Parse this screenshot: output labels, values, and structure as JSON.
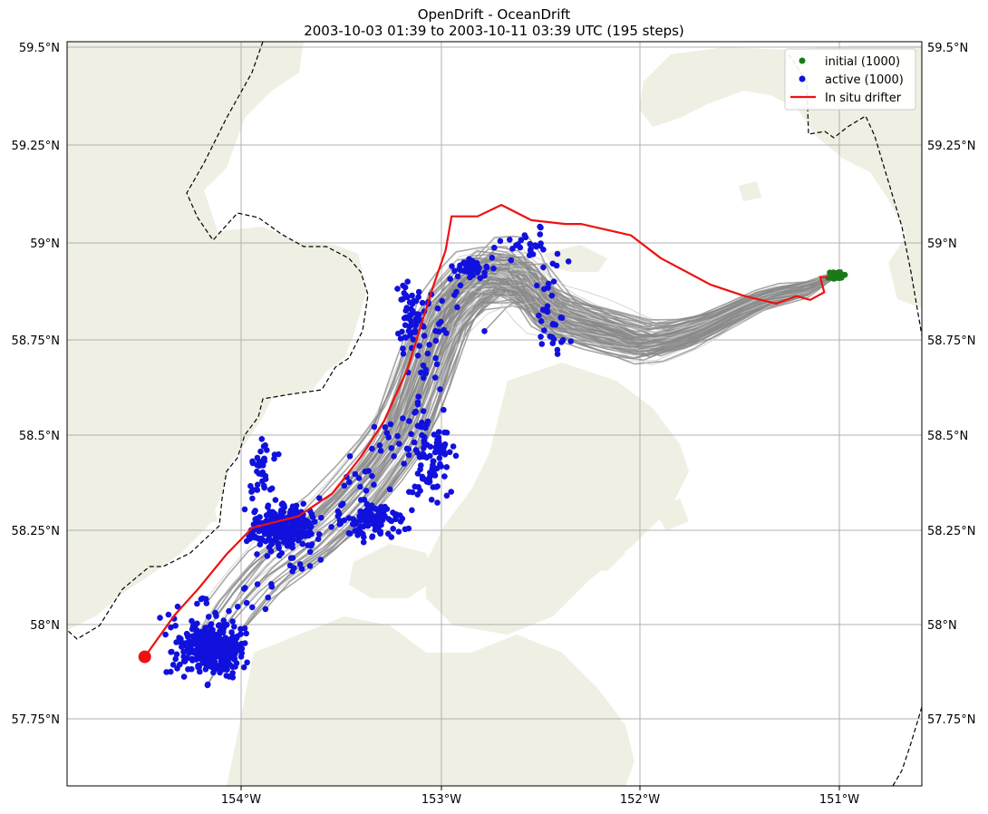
{
  "title": {
    "line1": "OpenDrift - OceanDrift",
    "line2": "2003-10-03 01:39 to 2003-10-11 03:39 UTC (195 steps)"
  },
  "axes": {
    "lon_ticks": [
      "154°W",
      "153°W",
      "152°W",
      "151°W"
    ],
    "lat_ticks_left": [
      "59.5°N",
      "59.25°N",
      "59°N",
      "58.75°N",
      "58.5°N",
      "58.25°N",
      "58°N",
      "57.75°N"
    ],
    "lat_ticks_right": [
      "59.5°N",
      "59.25°N",
      "59°N",
      "58.75°N",
      "58.5°N",
      "58.25°N",
      "58°N",
      "57.75°N"
    ]
  },
  "legend": {
    "items": [
      {
        "label": "initial (1000)",
        "color": "#1a7a1a",
        "kind": "dot"
      },
      {
        "label": "active (1000)",
        "color": "#1111dd",
        "kind": "dot"
      },
      {
        "label": "In situ drifter",
        "color": "#ee1111",
        "kind": "line"
      }
    ]
  },
  "chart_data": {
    "type": "scatter",
    "xlim": [
      -154.88,
      -150.59
    ],
    "ylim": [
      57.56,
      59.52
    ],
    "series": [
      {
        "name": "initial (1000)",
        "color": "#1a7a1a",
        "count": 1000,
        "center": [
          -151.02,
          58.905
        ]
      },
      {
        "name": "active (1000)",
        "color": "#1111dd",
        "count": 1000
      }
    ],
    "drifter_track": [
      [
        -154.49,
        57.9
      ],
      [
        -154.34,
        58.01
      ],
      [
        -154.22,
        58.08
      ],
      [
        -154.08,
        58.17
      ],
      [
        -153.95,
        58.24
      ],
      [
        -153.72,
        58.27
      ],
      [
        -153.55,
        58.33
      ],
      [
        -153.4,
        58.43
      ],
      [
        -153.29,
        58.52
      ],
      [
        -153.17,
        58.66
      ],
      [
        -153.1,
        58.78
      ],
      [
        -153.04,
        58.88
      ],
      [
        -152.98,
        58.97
      ],
      [
        -152.95,
        59.06
      ],
      [
        -152.82,
        59.06
      ],
      [
        -152.7,
        59.09
      ],
      [
        -152.55,
        59.05
      ],
      [
        -152.38,
        59.04
      ],
      [
        -152.3,
        59.04
      ],
      [
        -152.05,
        59.01
      ],
      [
        -151.9,
        58.95
      ],
      [
        -151.65,
        58.88
      ],
      [
        -151.48,
        58.85
      ],
      [
        -151.32,
        58.83
      ],
      [
        -151.22,
        58.85
      ],
      [
        -151.15,
        58.84
      ],
      [
        -151.08,
        58.86
      ],
      [
        -151.1,
        58.9
      ],
      [
        -151.06,
        58.9
      ]
    ],
    "drifter_start": [
      -154.49,
      57.9
    ]
  }
}
